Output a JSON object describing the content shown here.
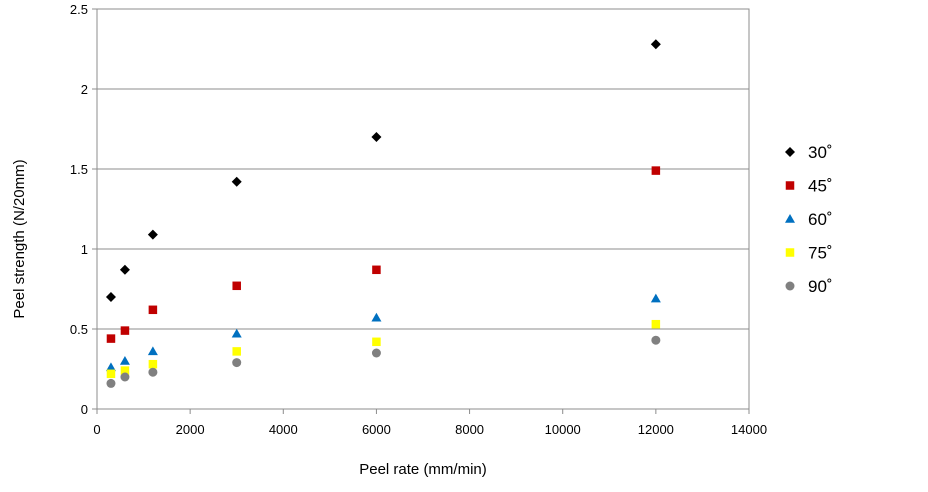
{
  "chart_data": {
    "type": "scatter",
    "xlabel": "Peel rate (mm/min)",
    "ylabel": "Peel strength (N/20mm)",
    "xlim": [
      0,
      14000
    ],
    "ylim": [
      0,
      2.5
    ],
    "x_ticks": [
      "0",
      "2000",
      "4000",
      "6000",
      "8000",
      "10000",
      "12000",
      "14000"
    ],
    "y_ticks": [
      "0",
      "0.5",
      "1",
      "1.5",
      "2",
      "2.5"
    ],
    "grid": "horizontal",
    "legend_position": "right",
    "series": [
      {
        "name": "30˚",
        "marker": "diamond",
        "color": "#000000",
        "points": [
          [
            300,
            0.7
          ],
          [
            600,
            0.87
          ],
          [
            1200,
            1.09
          ],
          [
            3000,
            1.42
          ],
          [
            6000,
            1.7
          ],
          [
            12000,
            2.28
          ]
        ]
      },
      {
        "name": "45˚",
        "marker": "square",
        "color": "#C00000",
        "points": [
          [
            300,
            0.44
          ],
          [
            600,
            0.49
          ],
          [
            1200,
            0.62
          ],
          [
            3000,
            0.77
          ],
          [
            6000,
            0.87
          ],
          [
            12000,
            1.49
          ]
        ]
      },
      {
        "name": "60˚",
        "marker": "triangle",
        "color": "#0070C0",
        "points": [
          [
            300,
            0.26
          ],
          [
            600,
            0.3
          ],
          [
            1200,
            0.36
          ],
          [
            3000,
            0.47
          ],
          [
            6000,
            0.57
          ],
          [
            12000,
            0.69
          ]
        ]
      },
      {
        "name": "75˚",
        "marker": "square",
        "color": "#FFFF00",
        "points": [
          [
            300,
            0.22
          ],
          [
            600,
            0.24
          ],
          [
            1200,
            0.28
          ],
          [
            3000,
            0.36
          ],
          [
            6000,
            0.42
          ],
          [
            12000,
            0.53
          ]
        ]
      },
      {
        "name": "90˚",
        "marker": "circle",
        "color": "#808080",
        "points": [
          [
            300,
            0.16
          ],
          [
            600,
            0.2
          ],
          [
            1200,
            0.23
          ],
          [
            3000,
            0.29
          ],
          [
            6000,
            0.35
          ],
          [
            12000,
            0.43
          ]
        ]
      }
    ]
  }
}
